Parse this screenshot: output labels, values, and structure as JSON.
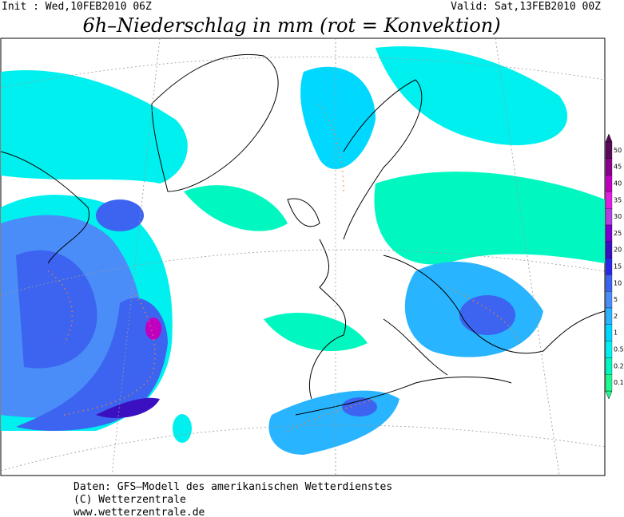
{
  "header": {
    "init": "Init : Wed,10FEB2010 06Z",
    "valid": "Valid: Sat,13FEB2010 00Z",
    "title": "6h–Niederschlag in mm (rot = Konvektion)"
  },
  "legend": {
    "items": [
      {
        "value": 50,
        "color": "#5a0a5a"
      },
      {
        "value": 45,
        "color": "#8a008a"
      },
      {
        "value": 40,
        "color": "#c000c0"
      },
      {
        "value": 35,
        "color": "#e020e0"
      },
      {
        "value": 30,
        "color": "#b040e0"
      },
      {
        "value": 25,
        "color": "#7a00d0"
      },
      {
        "value": 20,
        "color": "#3a10c0"
      },
      {
        "value": 15,
        "color": "#2828e8"
      },
      {
        "value": 10,
        "color": "#3c64f0"
      },
      {
        "value": 5,
        "color": "#4a8cf8"
      },
      {
        "value": 2,
        "color": "#28b4ff"
      },
      {
        "value": 1,
        "color": "#00d8ff"
      },
      {
        "value": 0.5,
        "color": "#00f0f0"
      },
      {
        "value": 0.2,
        "color": "#00f8c0"
      },
      {
        "value": 0.1,
        "color": "#20f890"
      }
    ]
  },
  "footer": {
    "lines": [
      "Daten: GFS–Modell des amerikanischen Wetterdienstes",
      "(C) Wetterzentrale",
      "www.wetterzentrale.de"
    ]
  }
}
